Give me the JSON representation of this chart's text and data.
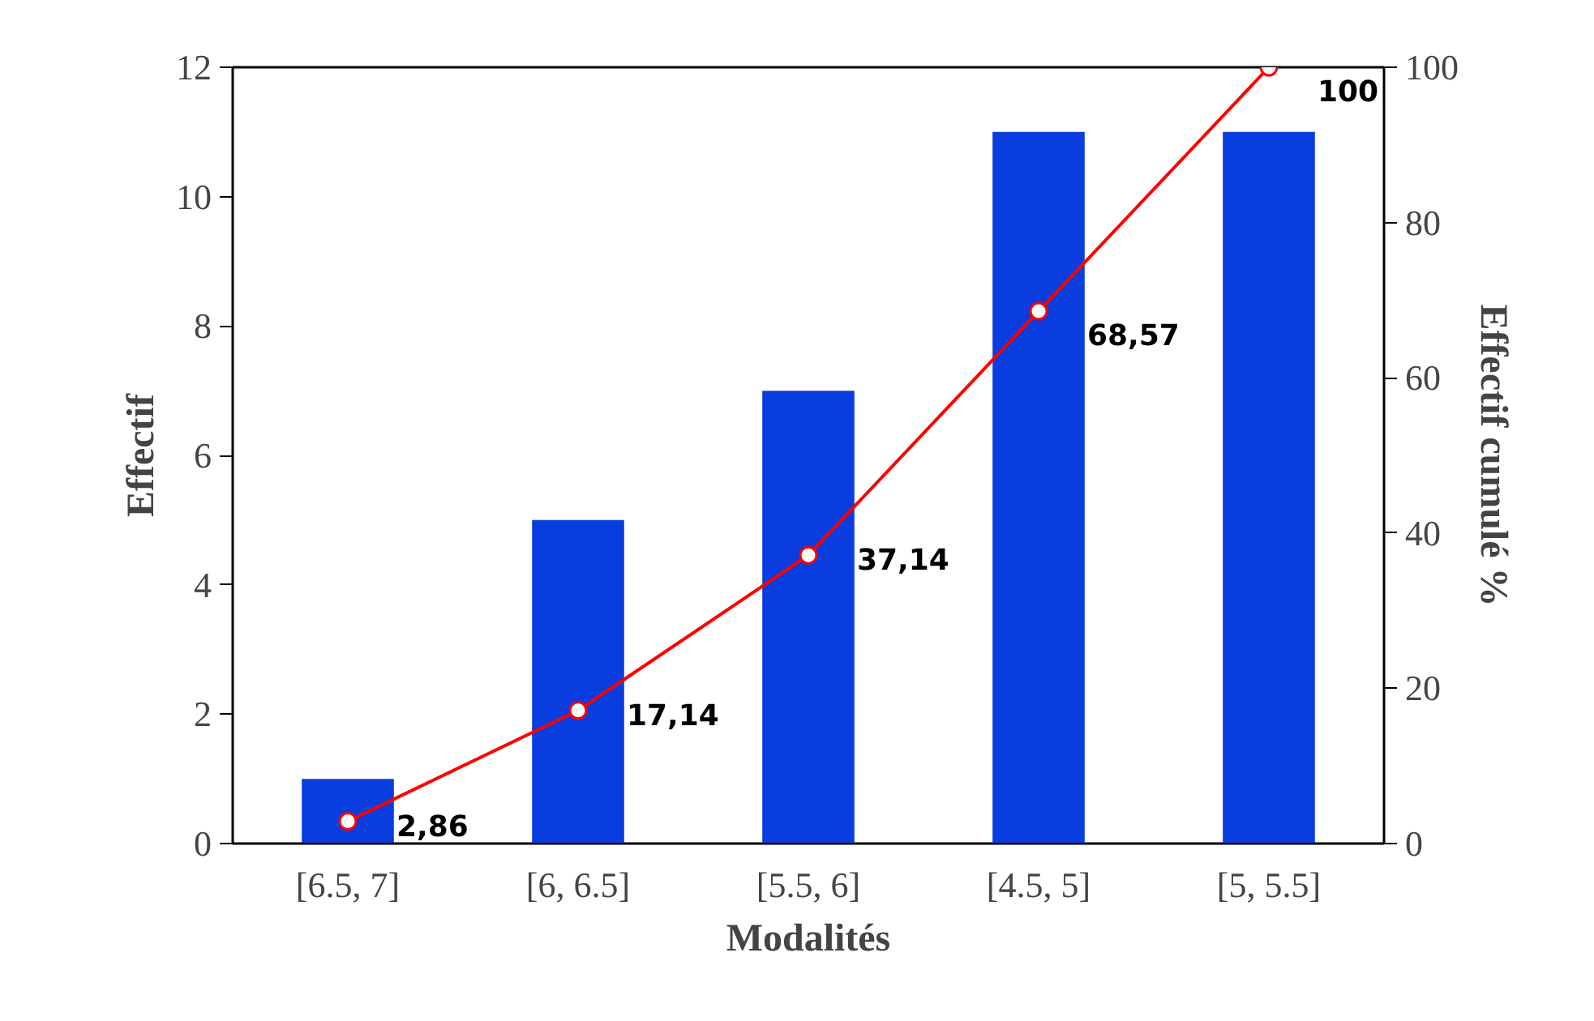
{
  "chart_data": {
    "type": "bar",
    "xlabel": "Modalités",
    "ylabel": "Effectif",
    "y2label": "Effectif cumulé %",
    "categories": [
      "[6.5, 7]",
      "[6, 6.5]",
      "[5.5, 6]",
      "[4.5, 5]",
      "[5, 5.5]"
    ],
    "series": [
      {
        "color": "#0a3de0",
        "values": [
          1,
          5,
          7,
          11,
          11
        ]
      },
      {
        "type": "line",
        "axis": "y2",
        "color": "#ff0000",
        "marker": "circle",
        "values": [
          2.86,
          17.14,
          37.14,
          68.57,
          100
        ],
        "value_labels": [
          "2,86",
          "17,14",
          "37,14",
          "68,57",
          "100"
        ]
      }
    ],
    "ylim": [
      0,
      12
    ],
    "yticks": [
      0,
      2,
      4,
      6,
      8,
      10,
      12
    ],
    "y2lim": [
      0,
      100
    ],
    "y2ticks": [
      0,
      20,
      40,
      60,
      80,
      100
    ],
    "grid": false
  }
}
